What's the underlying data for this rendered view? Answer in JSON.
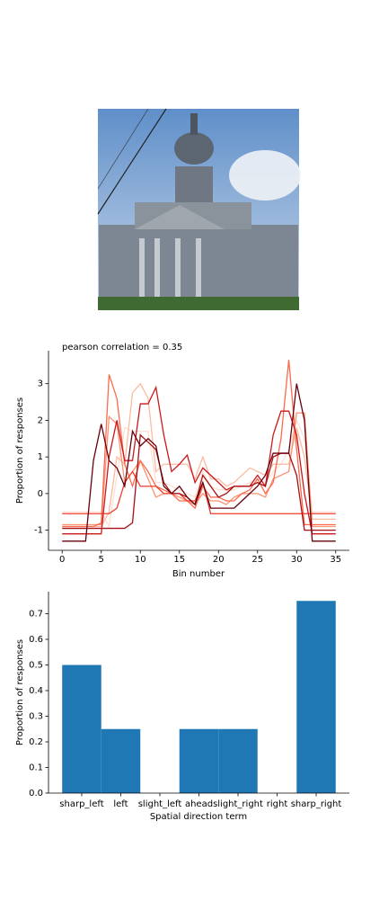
{
  "chart_data": [
    {
      "type": "line",
      "title": "pearson correlation = 0.35",
      "x_label": "Bin number",
      "y_label": "Proportion of responses",
      "x": [
        0,
        1,
        2,
        3,
        4,
        5,
        6,
        7,
        8,
        9,
        10,
        11,
        12,
        13,
        14,
        15,
        16,
        17,
        18,
        19,
        20,
        21,
        22,
        23,
        24,
        25,
        26,
        27,
        28,
        29,
        30,
        31,
        32,
        33,
        34,
        35
      ],
      "xlim": [
        -1.75,
        36.75
      ],
      "xticks": [
        0,
        5,
        10,
        15,
        20,
        25,
        30,
        35
      ],
      "ylim": [
        -1.55,
        3.9
      ],
      "yticks": [
        -1,
        0,
        1,
        2,
        3
      ],
      "series": [
        {
          "color": "#fee0d2",
          "values": [
            -0.5,
            -0.5,
            -0.5,
            -0.5,
            -0.5,
            -0.5,
            -0.9,
            0.5,
            1.8,
            1.7,
            1.7,
            1.7,
            0.3,
            0.3,
            0.2,
            0.1,
            0.0,
            -0.1,
            0.6,
            0.2,
            0.1,
            0.1,
            0.1,
            0.2,
            0.3,
            0.4,
            0.3,
            0.6,
            0.8,
            1.2,
            2.0,
            1.5,
            -0.5,
            -0.5,
            -0.5,
            -0.5
          ]
        },
        {
          "color": "#fcbba1",
          "values": [
            -0.9,
            -0.9,
            -0.9,
            -0.9,
            -0.9,
            -0.9,
            -0.5,
            1.0,
            0.8,
            2.75,
            3.0,
            2.6,
            0.6,
            0.8,
            0.8,
            0.8,
            0.8,
            0.4,
            1.0,
            0.4,
            0.4,
            0.2,
            0.3,
            0.5,
            0.7,
            0.6,
            0.5,
            0.8,
            0.8,
            0.8,
            1.8,
            1.0,
            -0.7,
            -0.7,
            -0.7,
            -0.7
          ]
        },
        {
          "color": "#fc9272",
          "values": [
            -0.85,
            -0.85,
            -0.85,
            -0.85,
            -0.85,
            -0.85,
            2.1,
            1.9,
            0.3,
            0.6,
            0.9,
            0.4,
            -0.1,
            0.0,
            0.0,
            -0.1,
            -0.2,
            -0.3,
            0.0,
            -0.2,
            -0.2,
            -0.3,
            -0.1,
            0.0,
            0.0,
            0.0,
            -0.1,
            0.4,
            0.5,
            0.6,
            2.2,
            2.2,
            -0.9,
            -0.9,
            -0.9,
            -0.9
          ]
        },
        {
          "color": "#fb6a4a",
          "values": [
            -0.9,
            -0.9,
            -0.9,
            -0.9,
            -0.9,
            -0.8,
            3.25,
            2.6,
            0.8,
            0.2,
            0.9,
            0.6,
            0.2,
            0.1,
            0.0,
            -0.2,
            -0.2,
            -0.4,
            0.2,
            -0.1,
            -0.1,
            -0.2,
            -0.2,
            0.0,
            0.1,
            0.4,
            0.0,
            0.3,
            1.5,
            3.65,
            1.2,
            -0.85,
            -0.85,
            -0.85,
            -0.85,
            -0.85
          ]
        },
        {
          "color": "#ef3b2c",
          "values": [
            -0.55,
            -0.55,
            -0.55,
            -0.55,
            -0.55,
            -0.55,
            -0.55,
            -0.4,
            0.3,
            0.6,
            0.2,
            0.2,
            0.2,
            0.0,
            0.0,
            0.0,
            -0.2,
            -0.2,
            0.3,
            -0.55,
            -0.55,
            -0.55,
            -0.55,
            -0.55,
            -0.55,
            -0.55,
            -0.55,
            -0.55,
            -0.55,
            -0.55,
            -0.55,
            -0.55,
            -0.55,
            -0.55,
            -0.55,
            -0.55
          ]
        },
        {
          "color": "#cb181d",
          "values": [
            -1.1,
            -1.1,
            -1.1,
            -1.1,
            -1.1,
            -1.1,
            1.0,
            2.0,
            0.9,
            0.9,
            2.45,
            2.45,
            2.9,
            1.6,
            0.6,
            0.8,
            1.05,
            0.3,
            0.7,
            0.5,
            0.3,
            0.1,
            0.2,
            0.2,
            0.2,
            0.5,
            0.2,
            1.6,
            2.25,
            2.25,
            1.6,
            0.0,
            -1.1,
            -1.1,
            -1.1,
            -1.1
          ]
        },
        {
          "color": "#a50f15",
          "values": [
            -0.95,
            -0.95,
            -0.95,
            -0.95,
            -0.95,
            -0.95,
            -0.95,
            -0.95,
            -0.95,
            -0.8,
            1.6,
            1.4,
            1.2,
            0.3,
            0.0,
            0.0,
            -0.1,
            -0.3,
            0.5,
            0.2,
            -0.1,
            0.0,
            0.2,
            0.2,
            0.2,
            0.3,
            0.2,
            1.0,
            1.1,
            1.1,
            0.5,
            -1.0,
            -1.0,
            -1.0,
            -1.0,
            -1.0
          ]
        },
        {
          "color": "#67000d",
          "values": [
            -1.3,
            -1.3,
            -1.3,
            -1.3,
            0.9,
            1.9,
            0.9,
            0.7,
            0.2,
            1.7,
            1.3,
            1.5,
            1.3,
            0.2,
            0.0,
            0.2,
            -0.1,
            -0.3,
            0.3,
            -0.4,
            -0.4,
            -0.4,
            -0.4,
            -0.2,
            0.0,
            0.2,
            0.5,
            1.1,
            1.1,
            1.1,
            3.0,
            2.0,
            -1.3,
            -1.3,
            -1.3,
            -1.3
          ]
        }
      ]
    },
    {
      "type": "bar",
      "x_label": "Spatial direction term",
      "y_label": "Proportion of responses",
      "categories": [
        "sharp_left",
        "left",
        "slight_left",
        "ahead",
        "slight_right",
        "right",
        "sharp_right"
      ],
      "values": [
        0.5,
        0.25,
        0,
        0.25,
        0.25,
        0,
        0.75
      ],
      "color": "#1f77b4",
      "ylim": [
        0,
        0.786
      ],
      "yticks": [
        {
          "value": 0,
          "label": "0.0"
        },
        {
          "value": 0.1,
          "label": "0.1"
        },
        {
          "value": 0.2,
          "label": "0.2"
        },
        {
          "value": 0.3,
          "label": "0.3"
        },
        {
          "value": 0.4,
          "label": "0.4"
        },
        {
          "value": 0.5,
          "label": "0.5"
        },
        {
          "value": 0.6,
          "label": "0.6"
        },
        {
          "value": 0.7,
          "label": "0.7"
        }
      ]
    }
  ]
}
